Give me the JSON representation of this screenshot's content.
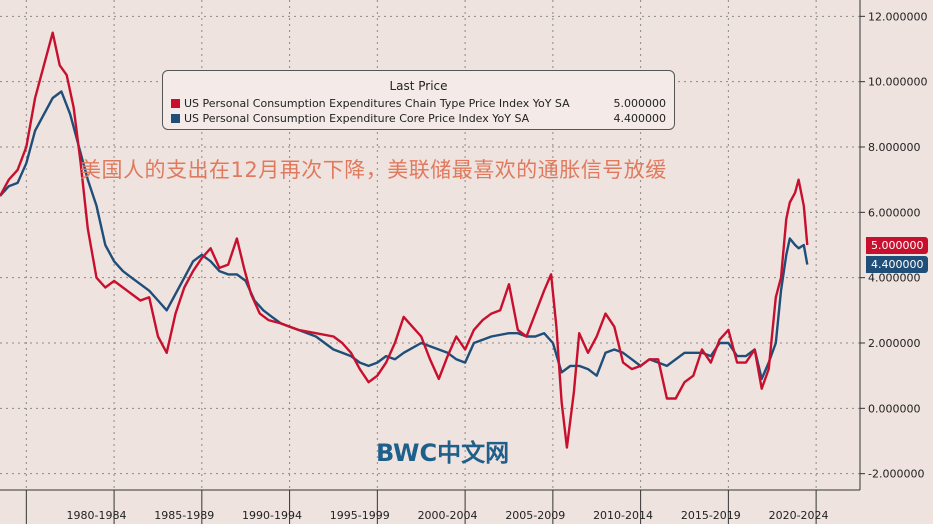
{
  "legend": {
    "title": "Last Price",
    "items": [
      {
        "name": "US Personal Consumption Expenditures Chain Type Price Index YoY SA",
        "value": "5.000000",
        "color": "#c8102e"
      },
      {
        "name": "US Personal Consumption Expenditure Core Price Index YoY SA",
        "value": "4.400000",
        "color": "#1f4e79"
      }
    ]
  },
  "headline": "美国人的支出在12月再次下降，美联储最喜欢的通胀信号放缓",
  "watermark": "BWC中文网",
  "badges": [
    {
      "text": "5.000000",
      "value": 5.0,
      "color": "#c8102e"
    },
    {
      "text": "4.400000",
      "value": 4.4,
      "color": "#1f4e79"
    }
  ],
  "chart_data": {
    "type": "line",
    "yaxis_position": "right",
    "ylim": [
      -2.5,
      12.5
    ],
    "yticks": [
      12,
      10,
      8,
      6,
      4,
      2,
      0,
      -2
    ],
    "ytick_labels": [
      "12.000000",
      "10.000000",
      "8.000000",
      "6.000000",
      "4.000000",
      "2.000000",
      "0.000000",
      "-2.000000"
    ],
    "xlim": [
      1977.0,
      2026.0
    ],
    "xtick_labels": [
      "1980-1984",
      "1985-1989",
      "1990-1994",
      "1995-1999",
      "2000-2004",
      "2005-2009",
      "2010-2014",
      "2015-2019",
      "2020-2024"
    ],
    "xtick_centers": [
      1982.5,
      1987.5,
      1992.5,
      1997.5,
      2002.5,
      2007.5,
      2012.5,
      2017.5,
      2022.5
    ],
    "xtick_bounds": [
      1978.5,
      1983.5,
      1988.5,
      1993.5,
      1998.5,
      2003.5,
      2008.5,
      2013.5,
      2018.5,
      2023.5
    ],
    "grid": true,
    "series": [
      {
        "name": "US Personal Consumption Expenditures Chain Type Price Index YoY SA",
        "color": "#c8102e",
        "x": [
          1977.0,
          1977.5,
          1978.0,
          1978.5,
          1979.0,
          1979.5,
          1980.0,
          1980.4,
          1980.8,
          1981.2,
          1981.6,
          1982.0,
          1982.5,
          1983.0,
          1983.5,
          1984.0,
          1984.5,
          1985.0,
          1985.5,
          1986.0,
          1986.5,
          1987.0,
          1987.5,
          1988.0,
          1988.5,
          1989.0,
          1989.5,
          1990.0,
          1990.5,
          1990.9,
          1991.3,
          1991.8,
          1992.3,
          1993.0,
          1994.0,
          1995.0,
          1996.0,
          1996.5,
          1997.0,
          1997.5,
          1998.0,
          1998.5,
          1999.0,
          1999.5,
          2000.0,
          2000.5,
          2001.0,
          2001.5,
          2002.0,
          2002.5,
          2003.0,
          2003.5,
          2004.0,
          2004.5,
          2005.0,
          2005.5,
          2006.0,
          2006.5,
          2007.0,
          2007.5,
          2008.0,
          2008.4,
          2008.7,
          2009.0,
          2009.3,
          2009.7,
          2010.0,
          2010.5,
          2011.0,
          2011.5,
          2012.0,
          2012.5,
          2013.0,
          2013.5,
          2014.0,
          2014.5,
          2015.0,
          2015.5,
          2016.0,
          2016.5,
          2017.0,
          2017.5,
          2018.0,
          2018.5,
          2019.0,
          2019.5,
          2020.0,
          2020.4,
          2020.8,
          2021.2,
          2021.5,
          2021.8,
          2022.0,
          2022.3,
          2022.5,
          2022.8,
          2023.0
        ],
        "y": [
          6.5,
          7.0,
          7.3,
          8.0,
          9.5,
          10.5,
          11.5,
          10.5,
          10.2,
          9.2,
          7.5,
          5.5,
          4.0,
          3.7,
          3.9,
          3.7,
          3.5,
          3.3,
          3.4,
          2.2,
          1.7,
          2.9,
          3.7,
          4.2,
          4.6,
          4.9,
          4.3,
          4.4,
          5.2,
          4.3,
          3.5,
          2.9,
          2.7,
          2.6,
          2.4,
          2.3,
          2.2,
          2.0,
          1.7,
          1.2,
          0.8,
          1.0,
          1.4,
          2.0,
          2.8,
          2.5,
          2.2,
          1.5,
          0.9,
          1.6,
          2.2,
          1.8,
          2.4,
          2.7,
          2.9,
          3.0,
          3.8,
          2.4,
          2.2,
          2.9,
          3.6,
          4.1,
          2.5,
          0.2,
          -1.2,
          0.5,
          2.3,
          1.7,
          2.2,
          2.9,
          2.5,
          1.4,
          1.2,
          1.3,
          1.5,
          1.5,
          0.3,
          0.3,
          0.8,
          1.0,
          1.8,
          1.4,
          2.1,
          2.4,
          1.4,
          1.4,
          1.8,
          0.6,
          1.2,
          3.4,
          4.0,
          5.8,
          6.3,
          6.6,
          7.0,
          6.2,
          5.0
        ]
      },
      {
        "name": "US Personal Consumption Expenditure Core Price Index YoY SA",
        "color": "#1f4e79",
        "x": [
          1977.0,
          1977.5,
          1978.0,
          1978.5,
          1979.0,
          1979.5,
          1980.0,
          1980.5,
          1981.0,
          1981.5,
          1982.0,
          1982.5,
          1983.0,
          1983.5,
          1984.0,
          1984.5,
          1985.0,
          1985.5,
          1986.0,
          1986.5,
          1987.0,
          1987.5,
          1988.0,
          1988.5,
          1989.0,
          1989.5,
          1990.0,
          1990.5,
          1991.0,
          1991.5,
          1992.0,
          1992.5,
          1993.0,
          1993.5,
          1994.0,
          1995.0,
          1996.0,
          1996.5,
          1997.0,
          1997.5,
          1998.0,
          1998.5,
          1999.0,
          1999.5,
          2000.0,
          2001.0,
          2002.0,
          2002.5,
          2003.0,
          2003.5,
          2004.0,
          2005.0,
          2006.0,
          2006.5,
          2007.0,
          2007.5,
          2008.0,
          2008.5,
          2009.0,
          2009.5,
          2010.0,
          2010.5,
          2011.0,
          2011.5,
          2012.0,
          2012.5,
          2013.0,
          2013.5,
          2014.0,
          2015.0,
          2016.0,
          2017.0,
          2017.5,
          2018.0,
          2018.5,
          2019.0,
          2019.5,
          2020.0,
          2020.4,
          2020.8,
          2021.2,
          2021.5,
          2021.8,
          2022.0,
          2022.3,
          2022.5,
          2022.8,
          2023.0
        ],
        "y": [
          6.5,
          6.8,
          6.9,
          7.5,
          8.5,
          9.0,
          9.5,
          9.7,
          9.0,
          8.0,
          7.0,
          6.2,
          5.0,
          4.5,
          4.2,
          4.0,
          3.8,
          3.6,
          3.3,
          3.0,
          3.5,
          4.0,
          4.5,
          4.7,
          4.5,
          4.2,
          4.1,
          4.1,
          3.9,
          3.3,
          3.0,
          2.8,
          2.6,
          2.5,
          2.4,
          2.2,
          1.8,
          1.7,
          1.6,
          1.4,
          1.3,
          1.4,
          1.6,
          1.5,
          1.7,
          2.0,
          1.8,
          1.7,
          1.5,
          1.4,
          2.0,
          2.2,
          2.3,
          2.3,
          2.2,
          2.2,
          2.3,
          2.0,
          1.1,
          1.3,
          1.3,
          1.2,
          1.0,
          1.7,
          1.8,
          1.7,
          1.5,
          1.3,
          1.5,
          1.3,
          1.7,
          1.7,
          1.6,
          2.0,
          2.0,
          1.6,
          1.6,
          1.8,
          0.9,
          1.4,
          2.0,
          3.6,
          4.7,
          5.2,
          5.0,
          4.9,
          5.0,
          4.4
        ]
      }
    ]
  }
}
